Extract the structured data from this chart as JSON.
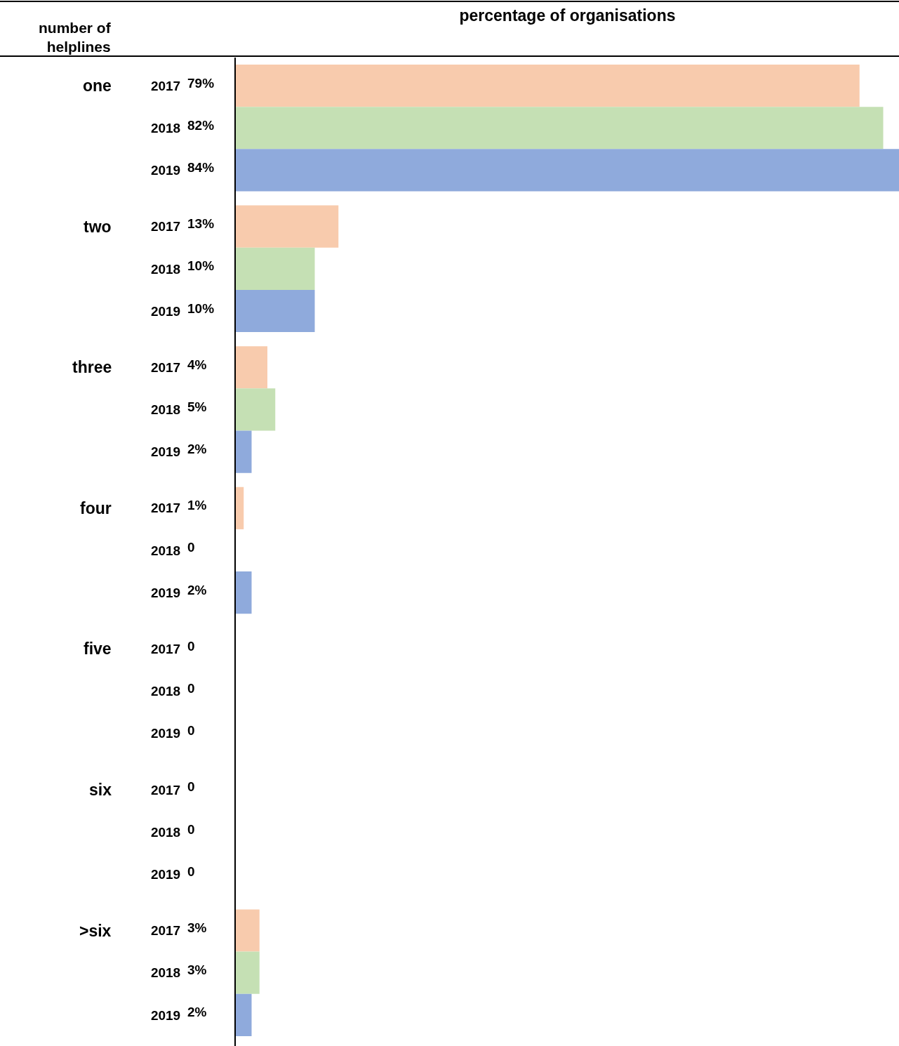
{
  "chart_data": {
    "type": "bar",
    "orientation": "horizontal",
    "title": "percentage of organisations",
    "ylabel": "number of helplines",
    "annotations": [
      "one",
      "two",
      "three",
      "four",
      "five",
      "six",
      ">six"
    ],
    "categories": [
      "2017",
      "2018",
      "2019",
      "2017",
      "2018",
      "2019",
      "2017",
      "2018",
      "2019",
      "2017",
      "2018",
      "2019",
      "2017",
      "2018",
      "2019",
      "2017",
      "2018",
      "2019",
      "2017",
      "2018",
      "2019"
    ],
    "values": [
      79,
      82,
      84,
      13,
      10,
      10,
      4,
      5,
      2,
      1,
      0,
      2,
      0,
      0,
      0,
      0,
      0,
      0,
      3,
      3,
      2
    ],
    "value_labels": [
      "79%",
      "82%",
      "84%",
      "13%",
      "10%",
      "10%",
      "4%",
      "5%",
      "2%",
      "1%",
      "0",
      "2%",
      "0",
      "0",
      "0",
      "0",
      "0",
      "0",
      "3%",
      "3%",
      "2%"
    ],
    "colors": [
      "#f8cbad",
      "#c5e0b4",
      "#8faadc",
      "#f8cbad",
      "#c5e0b4",
      "#8faadc",
      "#f8cbad",
      "#c5e0b4",
      "#8faadc",
      "#f8cbad",
      "#c5e0b4",
      "#8faadc",
      "#f8cbad",
      "#c5e0b4",
      "#8faadc",
      "#f8cbad",
      "#c5e0b4",
      "#8faadc",
      "#f8cbad",
      "#c5e0b4",
      "#8faadc"
    ]
  }
}
